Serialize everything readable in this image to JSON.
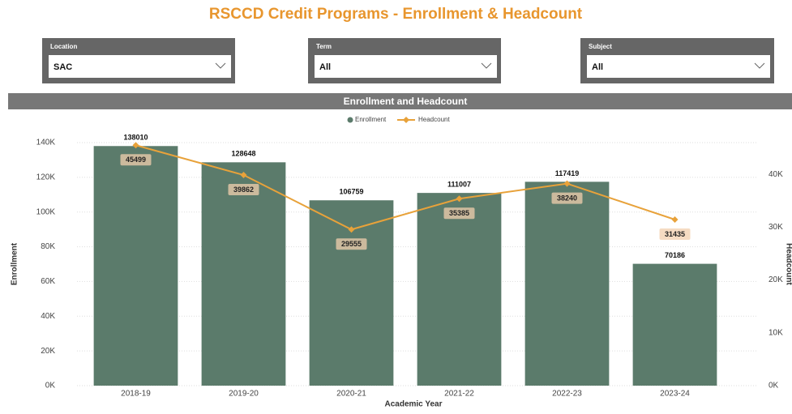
{
  "header": {
    "title": "RSCCD Credit Programs - Enrollment & Headcount"
  },
  "filters": [
    {
      "label": "Location",
      "value": "SAC"
    },
    {
      "label": "Term",
      "value": "All"
    },
    {
      "label": "Subject",
      "value": "All"
    }
  ],
  "chart_data": {
    "type": "combo",
    "title": "Enrollment and Headcount",
    "x_label": "Academic Year",
    "y_label": "Enrollment",
    "y2_label": "Headcount",
    "categories": [
      "2018-19",
      "2019-20",
      "2020-21",
      "2021-22",
      "2022-23",
      "2023-24"
    ],
    "series": [
      {
        "name": "Enrollment",
        "type": "bar",
        "color": "#5b7b6b",
        "values": [
          138010,
          128648,
          106759,
          111007,
          117419,
          70186
        ]
      },
      {
        "name": "Headcount",
        "type": "line",
        "color": "#e8a23a",
        "axis": "y2",
        "values": [
          45499,
          39862,
          29555,
          35385,
          38240,
          31435
        ]
      }
    ],
    "ylim": [
      0,
      140000
    ],
    "yticks": [
      {
        "value": 0,
        "label": "0K"
      },
      {
        "value": 20000,
        "label": "20K"
      },
      {
        "value": 40000,
        "label": "40K"
      },
      {
        "value": 60000,
        "label": "60K"
      },
      {
        "value": 80000,
        "label": "80K"
      },
      {
        "value": 100000,
        "label": "100K"
      },
      {
        "value": 120000,
        "label": "120K"
      },
      {
        "value": 140000,
        "label": "140K"
      }
    ],
    "y2lim": [
      0,
      46000
    ],
    "y2ticks": [
      {
        "value": 0,
        "label": "0K"
      },
      {
        "value": 10000,
        "label": "10K"
      },
      {
        "value": 20000,
        "label": "20K"
      },
      {
        "value": 30000,
        "label": "30K"
      },
      {
        "value": 40000,
        "label": "40K"
      }
    ],
    "grid": true,
    "legend": "top"
  }
}
